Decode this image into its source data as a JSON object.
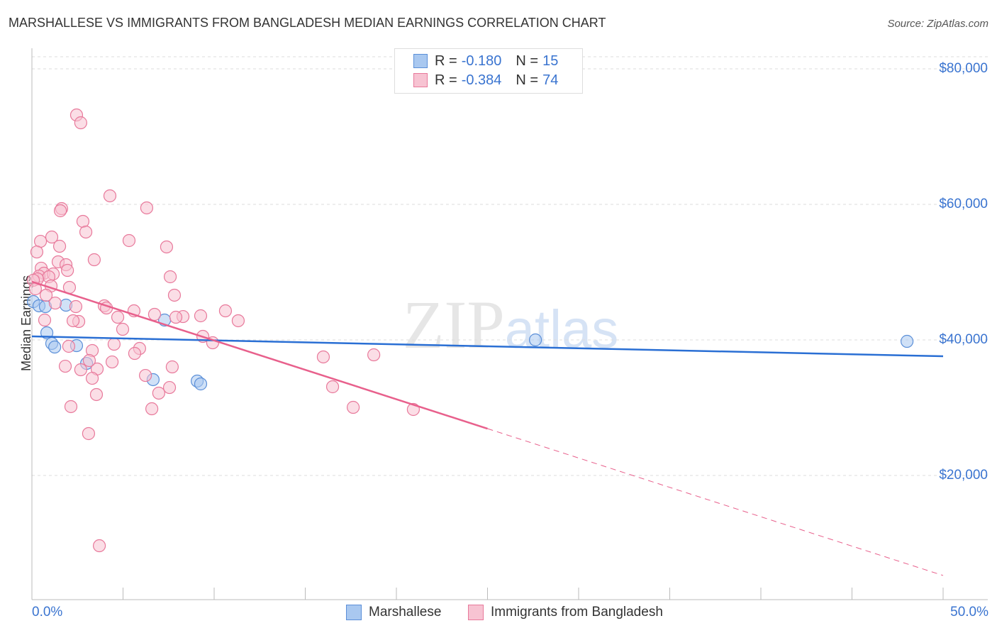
{
  "chart_data": {
    "type": "scatter",
    "title": "MARSHALLESE VS IMMIGRANTS FROM BANGLADESH MEDIAN EARNINGS CORRELATION CHART",
    "source": "Source: ZipAtlas.com",
    "xlabel": "",
    "ylabel": "Median Earnings",
    "xlim": [
      0,
      50
    ],
    "ylim": [
      0,
      83000
    ],
    "x_tick_labels": [
      "0.0%",
      "50.0%"
    ],
    "y_ticks": [
      20000,
      40000,
      60000,
      80000
    ],
    "y_tick_labels": [
      "$20,000",
      "$40,000",
      "$60,000",
      "$80,000"
    ],
    "legend_position": "top-center",
    "series": [
      {
        "name": "Marshallese",
        "color": "#5b8fd8",
        "fill": "#a9c8f0",
        "R": "-0.180",
        "N": "15",
        "trend": {
          "x": [
            0,
            50
          ],
          "y": [
            40520,
            37590
          ]
        },
        "points": [
          [
            0.08,
            45650
          ],
          [
            0.39,
            45030
          ],
          [
            0.74,
            44920
          ],
          [
            0.82,
            41050
          ],
          [
            1.09,
            39480
          ],
          [
            1.25,
            38950
          ],
          [
            1.87,
            45130
          ],
          [
            2.45,
            39160
          ],
          [
            3.0,
            36540
          ],
          [
            6.65,
            34140
          ],
          [
            7.28,
            42930
          ],
          [
            9.07,
            33930
          ],
          [
            9.26,
            33510
          ],
          [
            27.63,
            40000
          ],
          [
            48.02,
            39790
          ]
        ]
      },
      {
        "name": "Immigrants from Bangladesh",
        "color": "#e8799b",
        "fill": "#f7c3d2",
        "R": "-0.384",
        "N": "74",
        "trend": {
          "x": [
            0,
            25,
            50
          ],
          "y": [
            48590,
            26910,
            5240
          ],
          "solid_until": 25
        },
        "points": [
          [
            2.45,
            73190
          ],
          [
            2.68,
            72040
          ],
          [
            4.28,
            61260
          ],
          [
            1.63,
            59370
          ],
          [
            1.56,
            59060
          ],
          [
            6.3,
            59480
          ],
          [
            2.8,
            57490
          ],
          [
            2.96,
            55920
          ],
          [
            1.09,
            55180
          ],
          [
            0.47,
            54550
          ],
          [
            5.33,
            54660
          ],
          [
            0.27,
            52980
          ],
          [
            7.39,
            53720
          ],
          [
            1.52,
            53820
          ],
          [
            3.42,
            51830
          ],
          [
            1.44,
            51520
          ],
          [
            1.87,
            51100
          ],
          [
            0.51,
            50580
          ],
          [
            1.95,
            50260
          ],
          [
            0.66,
            49840
          ],
          [
            0.39,
            49420
          ],
          [
            1.17,
            49740
          ],
          [
            0.93,
            49320
          ],
          [
            7.59,
            49320
          ],
          [
            0.31,
            49000
          ],
          [
            0.08,
            48800
          ],
          [
            1.05,
            47960
          ],
          [
            2.06,
            47750
          ],
          [
            0.78,
            46600
          ],
          [
            7.82,
            46600
          ],
          [
            1.28,
            45440
          ],
          [
            2.41,
            44920
          ],
          [
            3.97,
            45030
          ],
          [
            4.09,
            44710
          ],
          [
            5.6,
            44290
          ],
          [
            6.73,
            43770
          ],
          [
            8.29,
            43450
          ],
          [
            9.26,
            43560
          ],
          [
            7.9,
            43350
          ],
          [
            4.71,
            43350
          ],
          [
            10.62,
            44290
          ],
          [
            11.32,
            42830
          ],
          [
            2.57,
            42720
          ],
          [
            2.26,
            42830
          ],
          [
            0.7,
            42930
          ],
          [
            4.98,
            41570
          ],
          [
            9.38,
            40520
          ],
          [
            9.92,
            39580
          ],
          [
            4.51,
            39370
          ],
          [
            2.02,
            39060
          ],
          [
            5.91,
            38740
          ],
          [
            3.31,
            38430
          ],
          [
            5.64,
            38010
          ],
          [
            4.4,
            36750
          ],
          [
            7.7,
            36020
          ],
          [
            1.83,
            36120
          ],
          [
            2.68,
            35600
          ],
          [
            3.58,
            35710
          ],
          [
            3.15,
            36960
          ],
          [
            6.23,
            34760
          ],
          [
            3.31,
            34340
          ],
          [
            7.55,
            32980
          ],
          [
            6.96,
            32150
          ],
          [
            3.54,
            31940
          ],
          [
            2.14,
            30160
          ],
          [
            6.58,
            29840
          ],
          [
            16.5,
            33090
          ],
          [
            17.63,
            30050
          ],
          [
            20.93,
            29740
          ],
          [
            15.99,
            37490
          ],
          [
            18.76,
            37800
          ],
          [
            3.11,
            26180
          ],
          [
            3.7,
            9630
          ],
          [
            0.19,
            47540
          ]
        ]
      }
    ]
  },
  "legend": {
    "r_label": "R =",
    "n_label": "N ="
  },
  "watermark": "ZIPatlas"
}
